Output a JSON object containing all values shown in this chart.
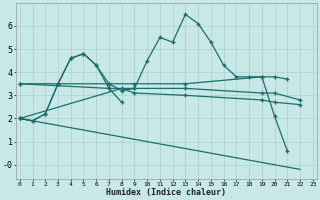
{
  "xlabel": "Humidex (Indice chaleur)",
  "bg_color": "#c8e8e8",
  "grid_color": "#b0d4d4",
  "line_color": "#1a6e6a",
  "line1": {
    "x": [
      0,
      1,
      2,
      3,
      4,
      5,
      6,
      7,
      8,
      9,
      10,
      11,
      12,
      13,
      14,
      15,
      16,
      17,
      18,
      19,
      20,
      21
    ],
    "y": [
      2.0,
      1.9,
      2.2,
      3.5,
      4.6,
      4.8,
      4.3,
      3.5,
      3.2,
      3.3,
      4.5,
      5.5,
      5.3,
      6.5,
      6.1,
      5.3,
      4.3,
      3.8,
      3.8,
      3.8,
      2.1,
      0.6
    ]
  },
  "line2": {
    "x": [
      0,
      1,
      2,
      3,
      4,
      5,
      6,
      7,
      8
    ],
    "y": [
      2.0,
      1.9,
      2.2,
      3.5,
      4.6,
      4.8,
      4.3,
      3.3,
      2.7
    ]
  },
  "line3": {
    "x": [
      0,
      3,
      7,
      9,
      13,
      19,
      20,
      21
    ],
    "y": [
      3.5,
      3.5,
      3.5,
      3.5,
      3.5,
      3.8,
      3.8,
      3.7
    ]
  },
  "line4": {
    "x": [
      0,
      7,
      9,
      13,
      19,
      20,
      22
    ],
    "y": [
      3.5,
      3.3,
      3.3,
      3.3,
      3.1,
      3.1,
      2.8
    ]
  },
  "line5": {
    "x": [
      0,
      8,
      9,
      13,
      19,
      20,
      22
    ],
    "y": [
      2.0,
      3.3,
      3.1,
      3.0,
      2.8,
      2.7,
      2.6
    ]
  },
  "line6": {
    "x": [
      0,
      22
    ],
    "y": [
      2.0,
      -0.2
    ]
  },
  "xlim": [
    -0.3,
    23.3
  ],
  "ylim": [
    -0.6,
    7.0
  ],
  "yticks": [
    0,
    1,
    2,
    3,
    4,
    5,
    6
  ],
  "ytick_labels": [
    "-0",
    "1",
    "2",
    "3",
    "4",
    "5",
    "6"
  ],
  "xticks": [
    0,
    1,
    2,
    3,
    4,
    5,
    6,
    7,
    8,
    9,
    10,
    11,
    12,
    13,
    14,
    15,
    16,
    17,
    18,
    19,
    20,
    21,
    22,
    23
  ]
}
